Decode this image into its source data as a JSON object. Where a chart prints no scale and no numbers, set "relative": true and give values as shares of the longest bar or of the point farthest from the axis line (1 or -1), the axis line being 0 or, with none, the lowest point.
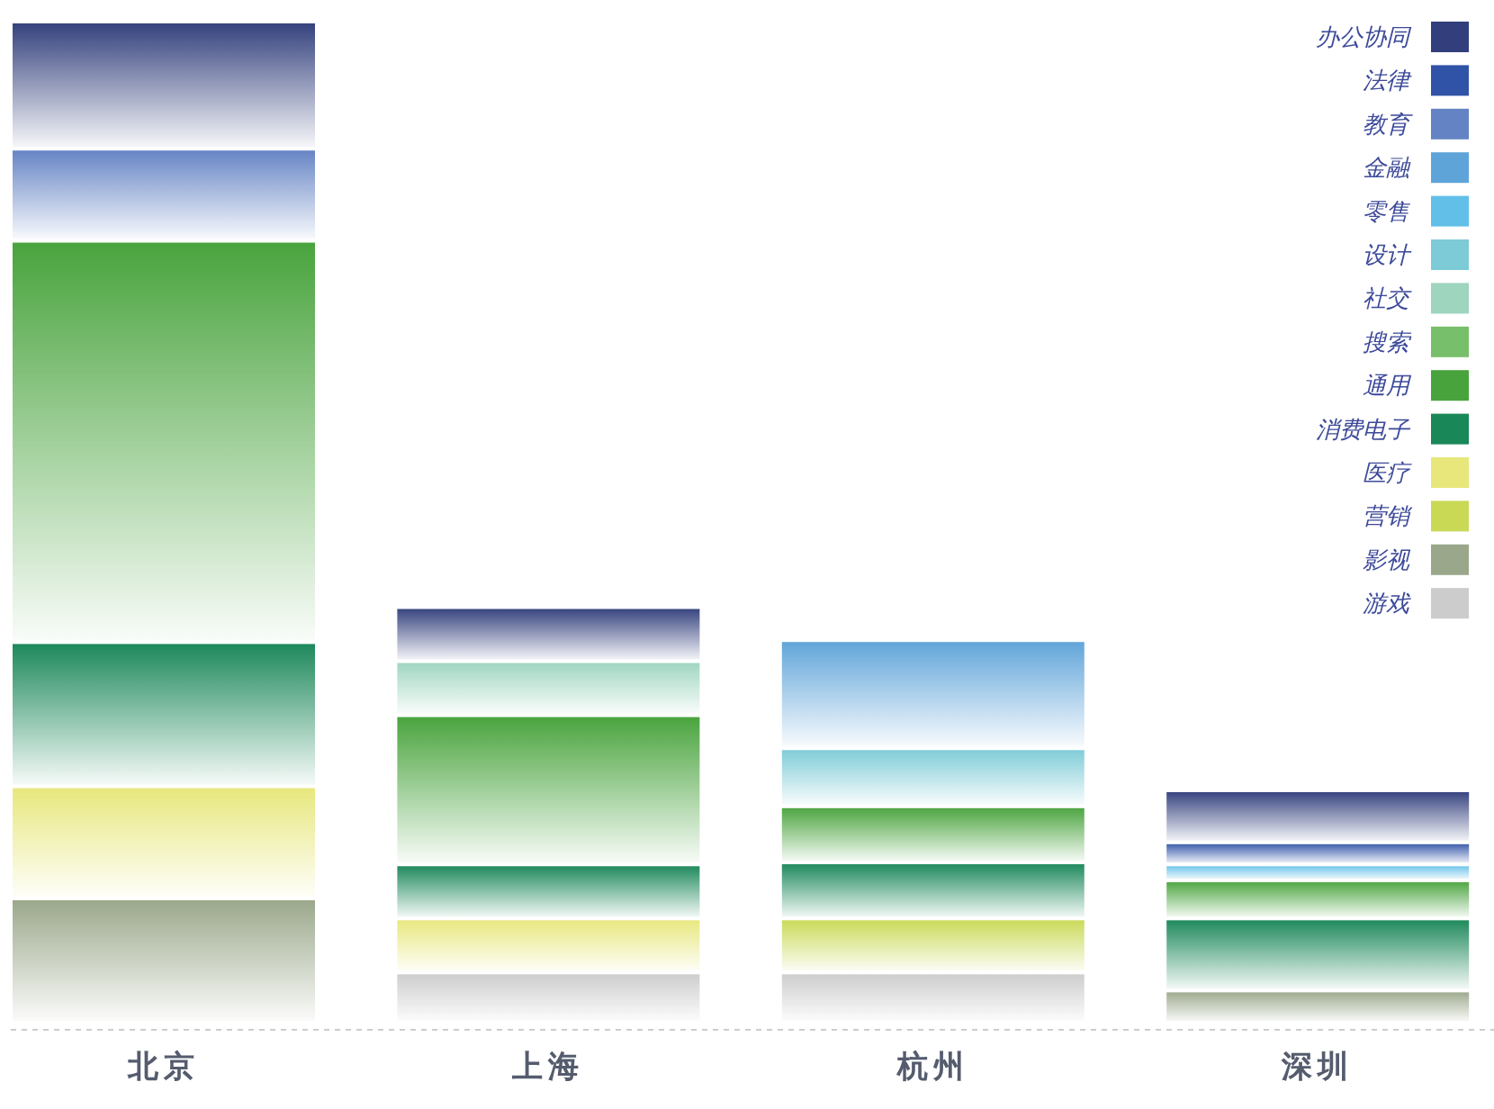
{
  "chart_data": {
    "type": "bar",
    "stacked": true,
    "relative": true,
    "legend": "top right",
    "categories": [
      "北京",
      "上海",
      "杭州",
      "深圳"
    ],
    "series": [
      {
        "name": "游戏",
        "color": "#cccccc",
        "values": [
          null,
          0.05,
          0.05,
          null
        ]
      },
      {
        "name": "影视",
        "color": "#9aa78a",
        "values": [
          0.124,
          null,
          null,
          0.032
        ]
      },
      {
        "name": "营销",
        "color": "#c9d955",
        "values": [
          null,
          null,
          0.054,
          null
        ]
      },
      {
        "name": "医疗",
        "color": "#e7e77c",
        "values": [
          0.112,
          0.054,
          null,
          null
        ]
      },
      {
        "name": "消费电子",
        "color": "#1a8759",
        "values": [
          0.144,
          0.054,
          0.056,
          0.072
        ]
      },
      {
        "name": "通用",
        "color": "#48a33c",
        "values": [
          0.401,
          0.149,
          0.056,
          0.038
        ]
      },
      {
        "name": "搜索",
        "color": "#78bf6b",
        "values": [
          null,
          null,
          null,
          null
        ]
      },
      {
        "name": "社交",
        "color": "#9dd5bf",
        "values": [
          null,
          0.054,
          null,
          null
        ]
      },
      {
        "name": "设计",
        "color": "#7dcbd6",
        "values": [
          null,
          null,
          0.058,
          null
        ]
      },
      {
        "name": "零售",
        "color": "#62c0e8",
        "values": [
          null,
          null,
          null,
          0.016
        ]
      },
      {
        "name": "金融",
        "color": "#5fa4d9",
        "values": [
          null,
          null,
          0.108,
          null
        ]
      },
      {
        "name": "教育",
        "color": "#6483c4",
        "values": [
          0.092,
          null,
          null,
          null
        ]
      },
      {
        "name": "法律",
        "color": "#3153a7",
        "values": [
          null,
          null,
          null,
          0.022
        ]
      },
      {
        "name": "办公协同",
        "color": "#323f7c",
        "values": [
          0.127,
          0.054,
          null,
          0.052
        ]
      }
    ]
  }
}
